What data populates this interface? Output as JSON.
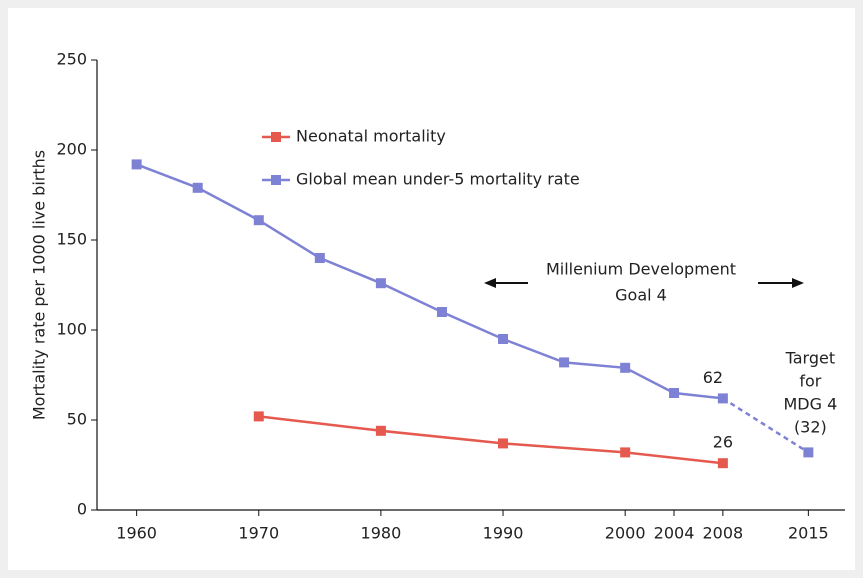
{
  "chart_data": {
    "type": "line",
    "y_label": "Mortality rate per 1000 live births",
    "series": [
      {
        "name": "Neonatal mortality",
        "color": "#e5594f",
        "x": [
          1970,
          1980,
          1990,
          2000,
          2008
        ],
        "values": [
          52,
          44,
          37,
          32,
          26
        ]
      },
      {
        "name": "Global mean under-5 mortality rate",
        "color": "#7e82d4",
        "x": [
          1960,
          1965,
          1970,
          1975,
          1980,
          1985,
          1990,
          1995,
          2000,
          2004,
          2008
        ],
        "values": [
          192,
          179,
          161,
          140,
          126,
          110,
          95,
          82,
          79,
          65,
          62
        ]
      }
    ],
    "target": {
      "x": 2015,
      "value": 32,
      "label": [
        "Target",
        "for",
        "MDG 4",
        "(32)"
      ]
    },
    "annotations": [
      "62",
      "26",
      "Millenium Development",
      "Goal 4"
    ],
    "xlim": [
      1957,
      2018
    ],
    "xticks": [
      1960,
      1970,
      1980,
      1990,
      2000,
      2004,
      2008,
      2015
    ],
    "ylim": [
      0,
      250
    ],
    "yticks": [
      0,
      50,
      100,
      150,
      200,
      250
    ]
  }
}
